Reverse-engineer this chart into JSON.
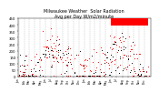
{
  "title": "Milwaukee Weather  Solar Radiation\nAvg per Day W/m2/minute",
  "title_fontsize": 3.5,
  "bg_color": "#ffffff",
  "plot_bg_color": "#ffffff",
  "series1_color": "#000000",
  "series2_color": "#ff0000",
  "marker_size": 0.6,
  "ylim": [
    0,
    450
  ],
  "yticks": [
    0,
    50,
    100,
    150,
    200,
    250,
    300,
    350,
    400,
    450
  ],
  "ytick_fontsize": 2.8,
  "xtick_fontsize": 2.2,
  "grid_color": "#bbbbbb",
  "grid_style": "--",
  "grid_linewidth": 0.3,
  "legend_box_color": "#ff0000",
  "n_days": 730,
  "seed": 99
}
